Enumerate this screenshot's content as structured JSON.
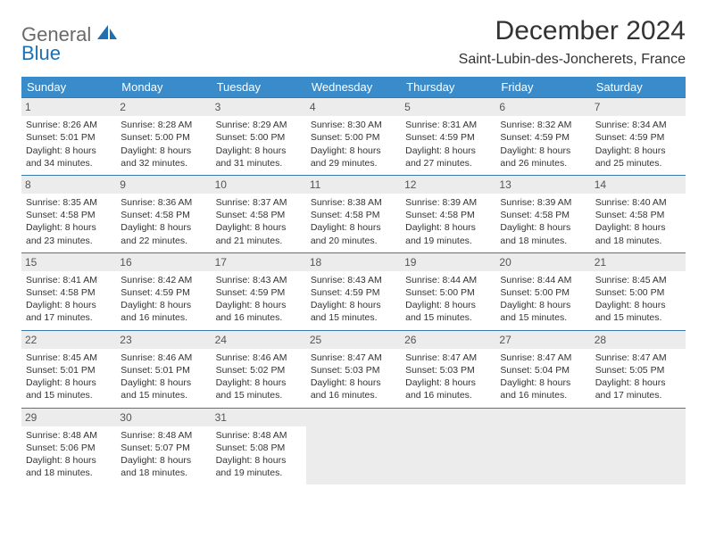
{
  "logo": {
    "general": "General",
    "blue": "Blue"
  },
  "title": "December 2024",
  "location": "Saint-Lubin-des-Joncherets, France",
  "colors": {
    "header_bg": "#3a8bc9",
    "header_text": "#ffffff",
    "daynum_bg": "#ececec",
    "row_border": "#3a7aa8",
    "logo_gray": "#6a6a6a",
    "logo_blue": "#1f6fb2"
  },
  "weekdays": [
    "Sunday",
    "Monday",
    "Tuesday",
    "Wednesday",
    "Thursday",
    "Friday",
    "Saturday"
  ],
  "weeks": [
    [
      {
        "n": "1",
        "sr": "Sunrise: 8:26 AM",
        "ss": "Sunset: 5:01 PM",
        "d1": "Daylight: 8 hours",
        "d2": "and 34 minutes."
      },
      {
        "n": "2",
        "sr": "Sunrise: 8:28 AM",
        "ss": "Sunset: 5:00 PM",
        "d1": "Daylight: 8 hours",
        "d2": "and 32 minutes."
      },
      {
        "n": "3",
        "sr": "Sunrise: 8:29 AM",
        "ss": "Sunset: 5:00 PM",
        "d1": "Daylight: 8 hours",
        "d2": "and 31 minutes."
      },
      {
        "n": "4",
        "sr": "Sunrise: 8:30 AM",
        "ss": "Sunset: 5:00 PM",
        "d1": "Daylight: 8 hours",
        "d2": "and 29 minutes."
      },
      {
        "n": "5",
        "sr": "Sunrise: 8:31 AM",
        "ss": "Sunset: 4:59 PM",
        "d1": "Daylight: 8 hours",
        "d2": "and 27 minutes."
      },
      {
        "n": "6",
        "sr": "Sunrise: 8:32 AM",
        "ss": "Sunset: 4:59 PM",
        "d1": "Daylight: 8 hours",
        "d2": "and 26 minutes."
      },
      {
        "n": "7",
        "sr": "Sunrise: 8:34 AM",
        "ss": "Sunset: 4:59 PM",
        "d1": "Daylight: 8 hours",
        "d2": "and 25 minutes."
      }
    ],
    [
      {
        "n": "8",
        "sr": "Sunrise: 8:35 AM",
        "ss": "Sunset: 4:58 PM",
        "d1": "Daylight: 8 hours",
        "d2": "and 23 minutes."
      },
      {
        "n": "9",
        "sr": "Sunrise: 8:36 AM",
        "ss": "Sunset: 4:58 PM",
        "d1": "Daylight: 8 hours",
        "d2": "and 22 minutes."
      },
      {
        "n": "10",
        "sr": "Sunrise: 8:37 AM",
        "ss": "Sunset: 4:58 PM",
        "d1": "Daylight: 8 hours",
        "d2": "and 21 minutes."
      },
      {
        "n": "11",
        "sr": "Sunrise: 8:38 AM",
        "ss": "Sunset: 4:58 PM",
        "d1": "Daylight: 8 hours",
        "d2": "and 20 minutes."
      },
      {
        "n": "12",
        "sr": "Sunrise: 8:39 AM",
        "ss": "Sunset: 4:58 PM",
        "d1": "Daylight: 8 hours",
        "d2": "and 19 minutes."
      },
      {
        "n": "13",
        "sr": "Sunrise: 8:39 AM",
        "ss": "Sunset: 4:58 PM",
        "d1": "Daylight: 8 hours",
        "d2": "and 18 minutes."
      },
      {
        "n": "14",
        "sr": "Sunrise: 8:40 AM",
        "ss": "Sunset: 4:58 PM",
        "d1": "Daylight: 8 hours",
        "d2": "and 18 minutes."
      }
    ],
    [
      {
        "n": "15",
        "sr": "Sunrise: 8:41 AM",
        "ss": "Sunset: 4:58 PM",
        "d1": "Daylight: 8 hours",
        "d2": "and 17 minutes."
      },
      {
        "n": "16",
        "sr": "Sunrise: 8:42 AM",
        "ss": "Sunset: 4:59 PM",
        "d1": "Daylight: 8 hours",
        "d2": "and 16 minutes."
      },
      {
        "n": "17",
        "sr": "Sunrise: 8:43 AM",
        "ss": "Sunset: 4:59 PM",
        "d1": "Daylight: 8 hours",
        "d2": "and 16 minutes."
      },
      {
        "n": "18",
        "sr": "Sunrise: 8:43 AM",
        "ss": "Sunset: 4:59 PM",
        "d1": "Daylight: 8 hours",
        "d2": "and 15 minutes."
      },
      {
        "n": "19",
        "sr": "Sunrise: 8:44 AM",
        "ss": "Sunset: 5:00 PM",
        "d1": "Daylight: 8 hours",
        "d2": "and 15 minutes."
      },
      {
        "n": "20",
        "sr": "Sunrise: 8:44 AM",
        "ss": "Sunset: 5:00 PM",
        "d1": "Daylight: 8 hours",
        "d2": "and 15 minutes."
      },
      {
        "n": "21",
        "sr": "Sunrise: 8:45 AM",
        "ss": "Sunset: 5:00 PM",
        "d1": "Daylight: 8 hours",
        "d2": "and 15 minutes."
      }
    ],
    [
      {
        "n": "22",
        "sr": "Sunrise: 8:45 AM",
        "ss": "Sunset: 5:01 PM",
        "d1": "Daylight: 8 hours",
        "d2": "and 15 minutes."
      },
      {
        "n": "23",
        "sr": "Sunrise: 8:46 AM",
        "ss": "Sunset: 5:01 PM",
        "d1": "Daylight: 8 hours",
        "d2": "and 15 minutes."
      },
      {
        "n": "24",
        "sr": "Sunrise: 8:46 AM",
        "ss": "Sunset: 5:02 PM",
        "d1": "Daylight: 8 hours",
        "d2": "and 15 minutes."
      },
      {
        "n": "25",
        "sr": "Sunrise: 8:47 AM",
        "ss": "Sunset: 5:03 PM",
        "d1": "Daylight: 8 hours",
        "d2": "and 16 minutes."
      },
      {
        "n": "26",
        "sr": "Sunrise: 8:47 AM",
        "ss": "Sunset: 5:03 PM",
        "d1": "Daylight: 8 hours",
        "d2": "and 16 minutes."
      },
      {
        "n": "27",
        "sr": "Sunrise: 8:47 AM",
        "ss": "Sunset: 5:04 PM",
        "d1": "Daylight: 8 hours",
        "d2": "and 16 minutes."
      },
      {
        "n": "28",
        "sr": "Sunrise: 8:47 AM",
        "ss": "Sunset: 5:05 PM",
        "d1": "Daylight: 8 hours",
        "d2": "and 17 minutes."
      }
    ],
    [
      {
        "n": "29",
        "sr": "Sunrise: 8:48 AM",
        "ss": "Sunset: 5:06 PM",
        "d1": "Daylight: 8 hours",
        "d2": "and 18 minutes."
      },
      {
        "n": "30",
        "sr": "Sunrise: 8:48 AM",
        "ss": "Sunset: 5:07 PM",
        "d1": "Daylight: 8 hours",
        "d2": "and 18 minutes."
      },
      {
        "n": "31",
        "sr": "Sunrise: 8:48 AM",
        "ss": "Sunset: 5:08 PM",
        "d1": "Daylight: 8 hours",
        "d2": "and 19 minutes."
      },
      {
        "empty": true
      },
      {
        "empty": true
      },
      {
        "empty": true
      },
      {
        "empty": true
      }
    ]
  ]
}
